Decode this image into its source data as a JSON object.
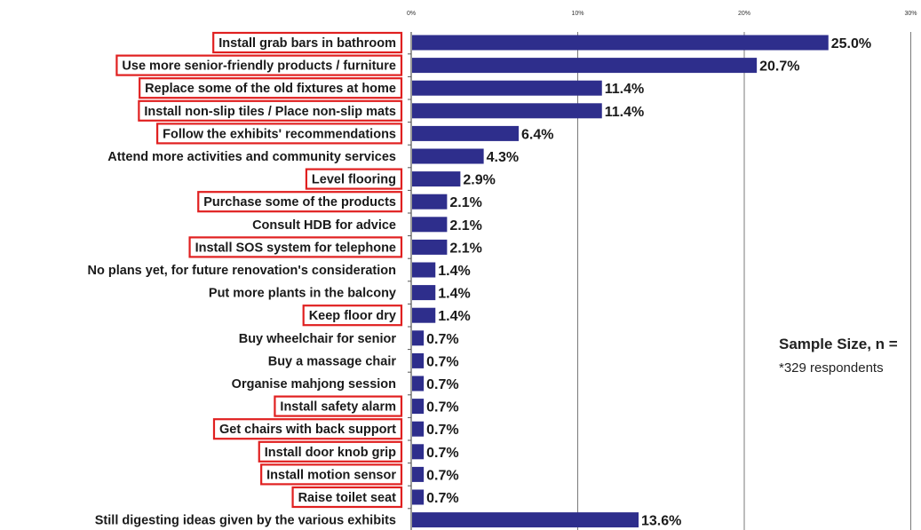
{
  "chart_data": {
    "type": "bar",
    "orientation": "horizontal",
    "title": "",
    "xlabel": "",
    "ylabel": "",
    "xlim": [
      0,
      30
    ],
    "x_ticks": [
      "0%",
      "10%",
      "20%",
      "30%"
    ],
    "grid": true,
    "bar_color": "#2e2e8c",
    "highlight_color": "#e02020",
    "categories": [
      "Install grab bars in bathroom",
      "Use more senior-friendly products / furniture",
      "Replace some of the old fixtures at home",
      "Install non-slip tiles / Place non-slip mats",
      "Follow the exhibits' recommendations",
      "Attend more activities and community services",
      "Level flooring",
      "Purchase some of the products",
      "Consult HDB for advice",
      "Install SOS system for telephone",
      "No plans yet, for future renovation's consideration",
      "Put more plants in the balcony",
      "Keep floor dry",
      "Buy wheelchair for senior",
      "Buy a massage chair",
      "Organise mahjong session",
      "Install safety alarm",
      "Get chairs with back support",
      "Install door knob grip",
      "Install motion sensor",
      "Raise toilet seat",
      "Still digesting ideas given by the various exhibits"
    ],
    "values": [
      25.0,
      20.7,
      11.4,
      11.4,
      6.4,
      4.3,
      2.9,
      2.1,
      2.1,
      2.1,
      1.4,
      1.4,
      1.4,
      0.7,
      0.7,
      0.7,
      0.7,
      0.7,
      0.7,
      0.7,
      0.7,
      13.6
    ],
    "value_labels": [
      "25.0%",
      "20.7%",
      "11.4%",
      "11.4%",
      "6.4%",
      "4.3%",
      "2.9%",
      "2.1%",
      "2.1%",
      "2.1%",
      "1.4%",
      "1.4%",
      "1.4%",
      "0.7%",
      "0.7%",
      "0.7%",
      "0.7%",
      "0.7%",
      "0.7%",
      "0.7%",
      "0.7%",
      "13.6%"
    ],
    "highlighted": [
      true,
      true,
      true,
      true,
      true,
      false,
      true,
      true,
      false,
      true,
      false,
      false,
      true,
      false,
      false,
      false,
      true,
      true,
      true,
      true,
      true,
      false
    ]
  },
  "annotation": {
    "sample_label": "Sample Size, n =",
    "sample_note": "*329 respondents"
  }
}
